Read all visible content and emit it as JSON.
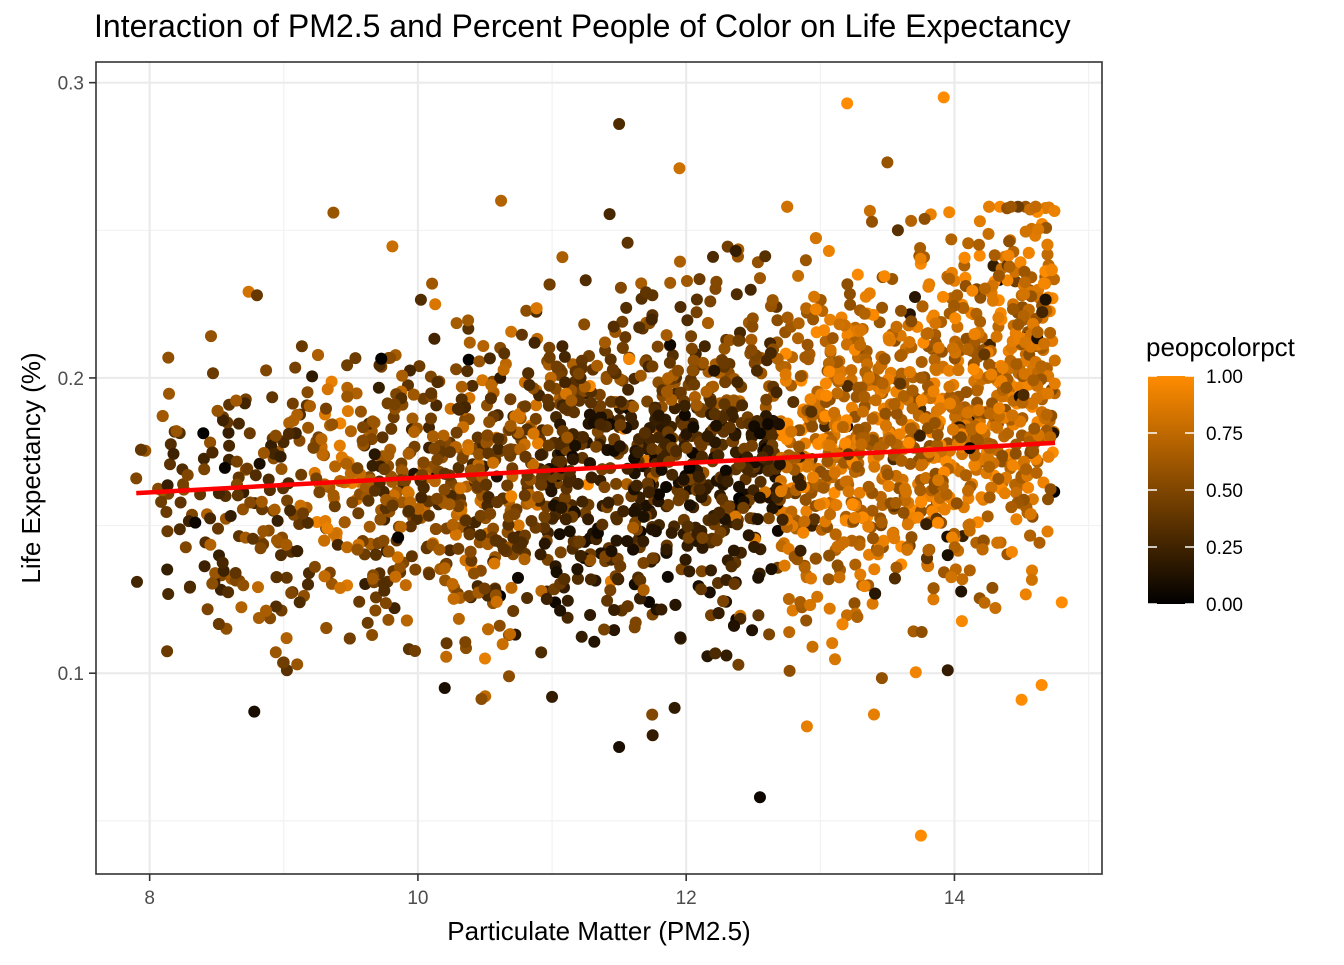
{
  "chart_data": {
    "type": "scatter",
    "title": "Interaction of PM2.5 and Percent People of Color on Life Expectancy",
    "xlabel": "Particulate Matter (PM2.5)",
    "ylabel": "Life Expectancy (%)",
    "xlim": [
      7.6,
      15.1
    ],
    "ylim": [
      0.032,
      0.307
    ],
    "x_ticks": [
      8,
      10,
      12,
      14
    ],
    "x_tick_labels": [
      "8",
      "10",
      "12",
      "14"
    ],
    "y_ticks": [
      0.1,
      0.2,
      0.3
    ],
    "y_tick_labels": [
      "0.1",
      "0.2",
      "0.3"
    ],
    "grid": true,
    "legend": {
      "title": "peopcolorpct",
      "placement": "right",
      "type": "colorbar",
      "ticks": [
        0,
        0.25,
        0.5,
        0.75,
        1.0
      ],
      "tick_labels": [
        "0.00",
        "0.25",
        "0.50",
        "0.75",
        "1.00"
      ],
      "low_color": "#000000",
      "high_color": "#FF8C00"
    },
    "trend_line": {
      "color": "#FF0000",
      "points": [
        [
          7.9,
          0.161
        ],
        [
          14.75,
          0.178
        ]
      ]
    },
    "point_generation": {
      "approx_count": 2900,
      "x_range": [
        7.9,
        14.75
      ],
      "y_range_core": [
        0.1,
        0.23
      ]
    },
    "points": [
      {
        "x": 7.9,
        "y": 0.166,
        "c": 0.5
      },
      {
        "x": 8.2,
        "y": 0.182,
        "c": 0.6
      },
      {
        "x": 8.3,
        "y": 0.129,
        "c": 0.3
      },
      {
        "x": 8.8,
        "y": 0.228,
        "c": 0.4
      },
      {
        "x": 8.78,
        "y": 0.087,
        "c": 0.1
      },
      {
        "x": 10.2,
        "y": 0.095,
        "c": 0.1
      },
      {
        "x": 11.5,
        "y": 0.286,
        "c": 0.3
      },
      {
        "x": 11.95,
        "y": 0.271,
        "c": 0.8
      },
      {
        "x": 10.62,
        "y": 0.26,
        "c": 0.7
      },
      {
        "x": 9.37,
        "y": 0.256,
        "c": 0.6
      },
      {
        "x": 12.37,
        "y": 0.243,
        "c": 0.2
      },
      {
        "x": 12.2,
        "y": 0.241,
        "c": 0.3
      },
      {
        "x": 11.5,
        "y": 0.075,
        "c": 0.1
      },
      {
        "x": 11.75,
        "y": 0.079,
        "c": 0.2
      },
      {
        "x": 12.55,
        "y": 0.058,
        "c": 0.05
      },
      {
        "x": 13.75,
        "y": 0.045,
        "c": 1.0
      },
      {
        "x": 13.2,
        "y": 0.293,
        "c": 1.0
      },
      {
        "x": 13.92,
        "y": 0.295,
        "c": 1.0
      },
      {
        "x": 13.5,
        "y": 0.273,
        "c": 0.6
      },
      {
        "x": 13.4,
        "y": 0.086,
        "c": 0.9
      },
      {
        "x": 13.95,
        "y": 0.101,
        "c": 0.2
      },
      {
        "x": 12.9,
        "y": 0.082,
        "c": 0.9
      },
      {
        "x": 14.5,
        "y": 0.091,
        "c": 1.0
      },
      {
        "x": 14.65,
        "y": 0.096,
        "c": 1.0
      },
      {
        "x": 11.0,
        "y": 0.092,
        "c": 0.2
      },
      {
        "x": 10.5,
        "y": 0.105,
        "c": 0.9
      },
      {
        "x": 12.3,
        "y": 0.106,
        "c": 0.2
      },
      {
        "x": 9.1,
        "y": 0.103,
        "c": 0.6
      },
      {
        "x": 14.8,
        "y": 0.124,
        "c": 1.0
      },
      {
        "x": 13.95,
        "y": 0.14,
        "c": 0.1
      }
    ]
  }
}
